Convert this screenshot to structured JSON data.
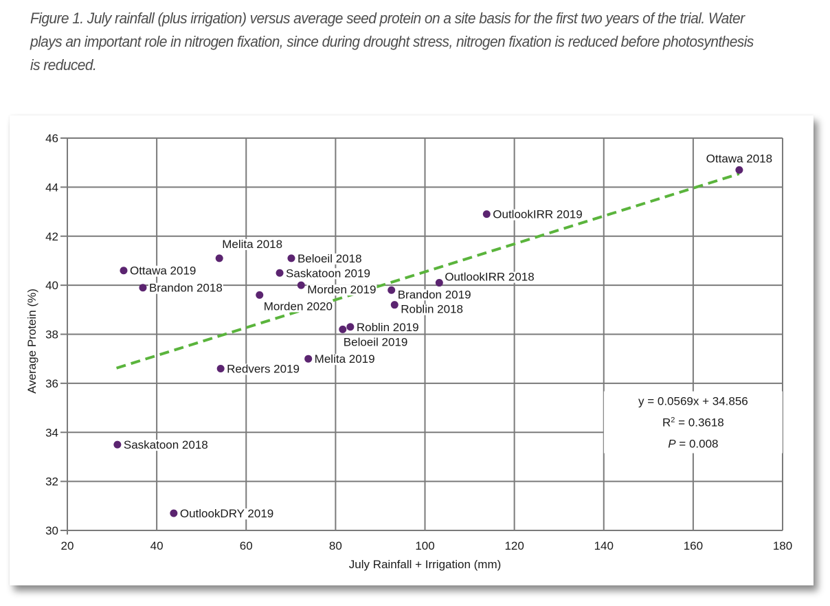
{
  "caption": "Figure 1. July rainfall (plus irrigation) versus average seed protein on a site basis for the first two years of the trial. Water plays an important role in nitrogen fixation, since during drought stress, nitrogen fixation is reduced before photosynthesis is reduced.",
  "colors": {
    "point": "#5b2470",
    "trendline": "#5ab43c",
    "grid": "#7a7a7a"
  },
  "chart_data": {
    "type": "scatter",
    "title": "",
    "xlabel": "July Rainfall + Irrigation (mm)",
    "ylabel": "Average Protein (%)",
    "xlim": [
      20,
      180
    ],
    "ylim": [
      30,
      46
    ],
    "xticks": [
      20,
      40,
      60,
      80,
      100,
      120,
      140,
      160,
      180
    ],
    "yticks": [
      30,
      32,
      34,
      36,
      38,
      40,
      42,
      44,
      46
    ],
    "grid": true,
    "legend": "none",
    "points": [
      {
        "label": "Ottawa 2018",
        "x": 170.3,
        "y": 44.7,
        "label_pos": "above"
      },
      {
        "label": "OutlookIRR 2019",
        "x": 113.8,
        "y": 42.9,
        "label_pos": "right"
      },
      {
        "label": "Melita 2018",
        "x": 54.0,
        "y": 41.1,
        "label_pos": "above-right"
      },
      {
        "label": "Beloeil 2018",
        "x": 70.1,
        "y": 41.1,
        "label_pos": "right"
      },
      {
        "label": "Ottawa 2019",
        "x": 32.6,
        "y": 40.6,
        "label_pos": "right"
      },
      {
        "label": "Saskatoon 2019",
        "x": 67.5,
        "y": 40.5,
        "label_pos": "right"
      },
      {
        "label": "Brandon 2018",
        "x": 36.9,
        "y": 39.9,
        "label_pos": "right"
      },
      {
        "label": "Morden 2019",
        "x": 72.3,
        "y": 40.0,
        "label_pos": "right-below"
      },
      {
        "label": "OutlookIRR 2018",
        "x": 103.2,
        "y": 40.1,
        "label_pos": "right-above"
      },
      {
        "label": "Brandon 2019",
        "x": 92.5,
        "y": 39.8,
        "label_pos": "right-below"
      },
      {
        "label": "Morden 2020",
        "x": 63.0,
        "y": 39.6,
        "label_pos": "below-right"
      },
      {
        "label": "Roblin 2018",
        "x": 93.2,
        "y": 39.2,
        "label_pos": "right-below"
      },
      {
        "label": "Roblin 2019",
        "x": 83.3,
        "y": 38.3,
        "label_pos": "right"
      },
      {
        "label": "Beloeil 2019",
        "x": 81.6,
        "y": 38.2,
        "label_pos": "below"
      },
      {
        "label": "Melita 2019",
        "x": 73.9,
        "y": 37.0,
        "label_pos": "right"
      },
      {
        "label": "Redvers 2019",
        "x": 54.3,
        "y": 36.6,
        "label_pos": "right"
      },
      {
        "label": "Saskatoon 2018",
        "x": 31.2,
        "y": 33.5,
        "label_pos": "right"
      },
      {
        "label": "OutlookDRY 2019",
        "x": 43.8,
        "y": 30.7,
        "label_pos": "right"
      }
    ],
    "trendline": {
      "slope": 0.0569,
      "intercept": 34.856,
      "x_range": [
        31,
        170.3
      ],
      "style": "dashed"
    },
    "annotations": {
      "equation": "y = 0.0569x + 34.856",
      "r2_prefix": "R",
      "r2_sup": "2",
      "r2_value": " = 0.3618",
      "p_symbol": "P",
      "p_value": " = 0.008"
    }
  }
}
